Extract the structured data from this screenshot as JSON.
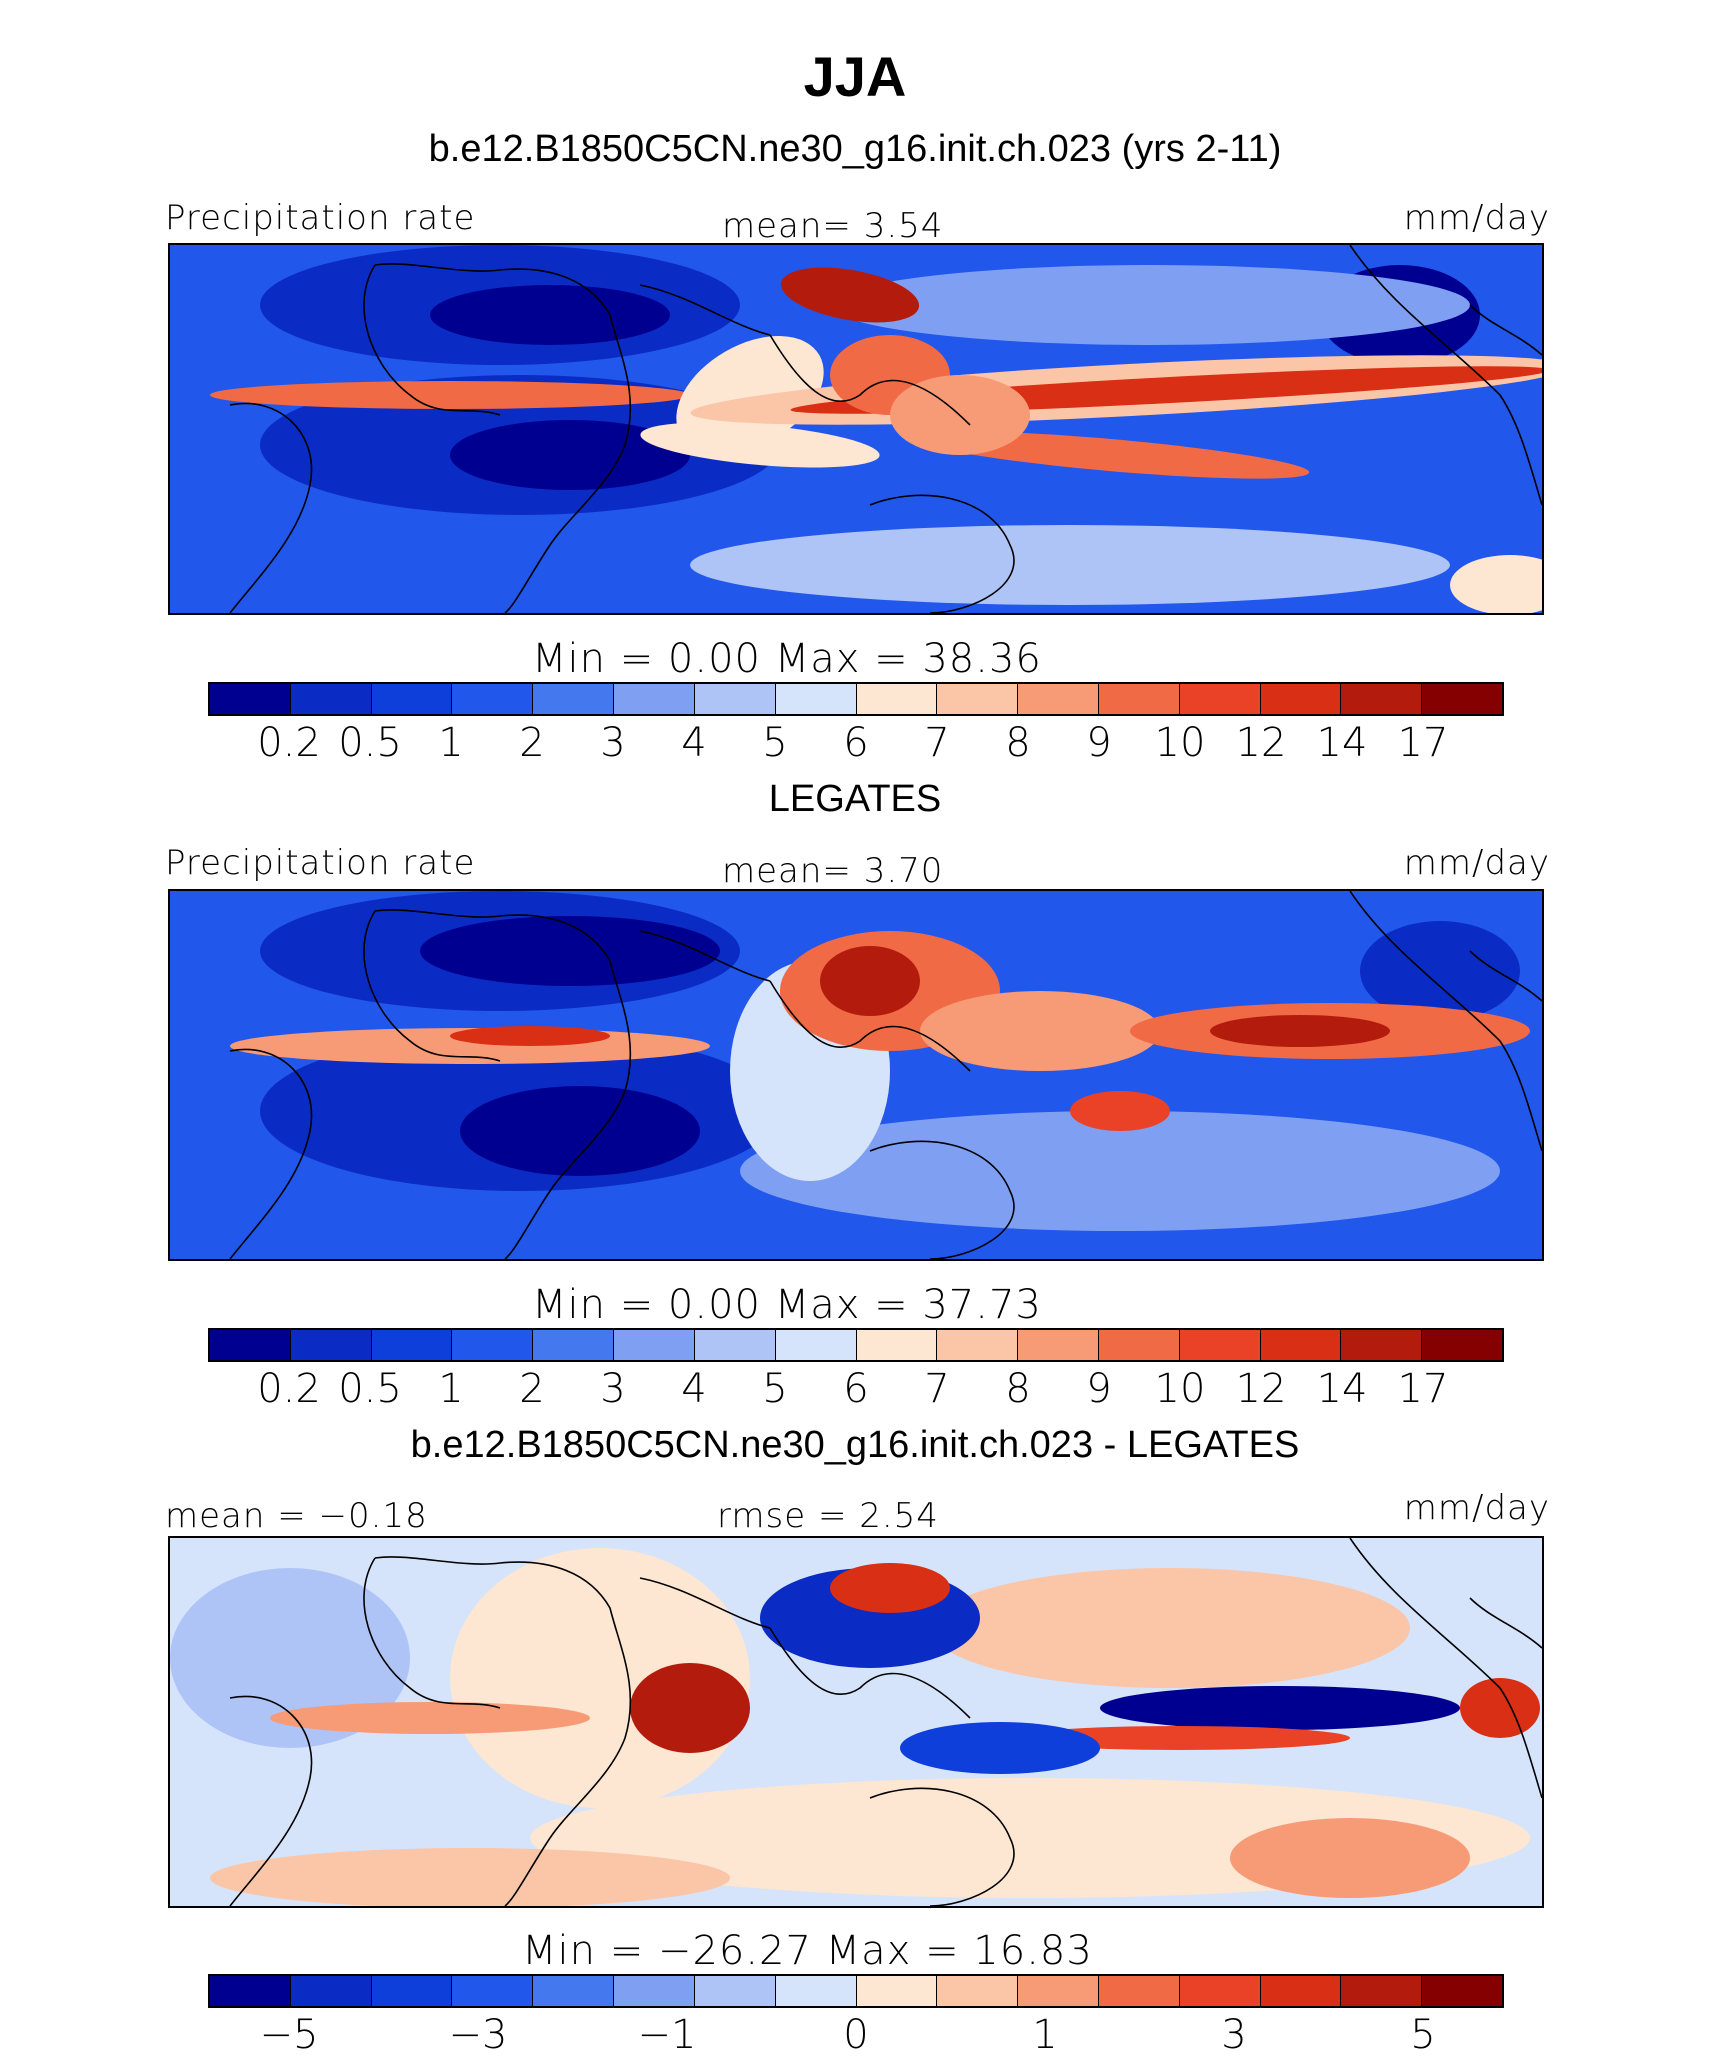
{
  "title": "JJA",
  "colors": [
    "#000090",
    "#0a2cc4",
    "#0f3fda",
    "#2257ec",
    "#4478ee",
    "#7fa0f2",
    "#aec4f7",
    "#d5e4fb",
    "#fde6d2",
    "#fbc5a8",
    "#f79a76",
    "#f06a45",
    "#e94226",
    "#d92f14",
    "#b31c0d",
    "#850000"
  ],
  "panels": [
    {
      "subtitle": "b.e12.B1850C5CN.ne30_g16.init.ch.023 (yrs 2-11)",
      "left_label": "Precipitation rate",
      "center_label": "mean=    3.54",
      "right_label": "mm/day",
      "minmax": "Min  =     0.00  Max  =    38.36",
      "ticks": [
        "0.2",
        "0.5",
        "1",
        "2",
        "3",
        "4",
        "5",
        "6",
        "7",
        "8",
        "9",
        "10",
        "12",
        "14",
        "17"
      ]
    },
    {
      "subtitle": "LEGATES",
      "left_label": "Precipitation rate",
      "center_label": "mean=    3.70",
      "right_label": "mm/day",
      "minmax": "Min  =     0.00  Max  =    37.73",
      "ticks": [
        "0.2",
        "0.5",
        "1",
        "2",
        "3",
        "4",
        "5",
        "6",
        "7",
        "8",
        "9",
        "10",
        "12",
        "14",
        "17"
      ]
    },
    {
      "subtitle": "b.e12.B1850C5CN.ne30_g16.init.ch.023 - LEGATES",
      "left_label": "mean =  −0.18",
      "center_label": "rmse  =    2.54",
      "right_label": "mm/day",
      "minmax": "Min  = −26.27  Max  =    16.83",
      "ticks": [
        "−5",
        "",
        "−3",
        "",
        "−1",
        "",
        "0",
        "",
        "1",
        "",
        "3",
        "",
        "5"
      ]
    }
  ],
  "chart_data": [
    {
      "type": "heatmap",
      "title": "JJA",
      "subtitle": "b.e12.B1850C5CN.ne30_g16.init.ch.023 (yrs 2-11)",
      "variable": "Precipitation rate",
      "units": "mm/day",
      "mean": 3.54,
      "min": 0.0,
      "max": 38.36,
      "contour_levels": [
        0.2,
        0.5,
        1,
        2,
        3,
        4,
        5,
        6,
        7,
        8,
        9,
        10,
        12,
        14,
        17
      ]
    },
    {
      "type": "heatmap",
      "subtitle": "LEGATES",
      "variable": "Precipitation rate",
      "units": "mm/day",
      "mean": 3.7,
      "min": 0.0,
      "max": 37.73,
      "contour_levels": [
        0.2,
        0.5,
        1,
        2,
        3,
        4,
        5,
        6,
        7,
        8,
        9,
        10,
        12,
        14,
        17
      ]
    },
    {
      "type": "heatmap",
      "subtitle": "b.e12.B1850C5CN.ne30_g16.init.ch.023 - LEGATES",
      "units": "mm/day",
      "mean": -0.18,
      "rmse": 2.54,
      "min": -26.27,
      "max": 16.83,
      "contour_level_labels": [
        -5,
        -3,
        -1,
        0,
        1,
        3,
        5
      ]
    }
  ]
}
